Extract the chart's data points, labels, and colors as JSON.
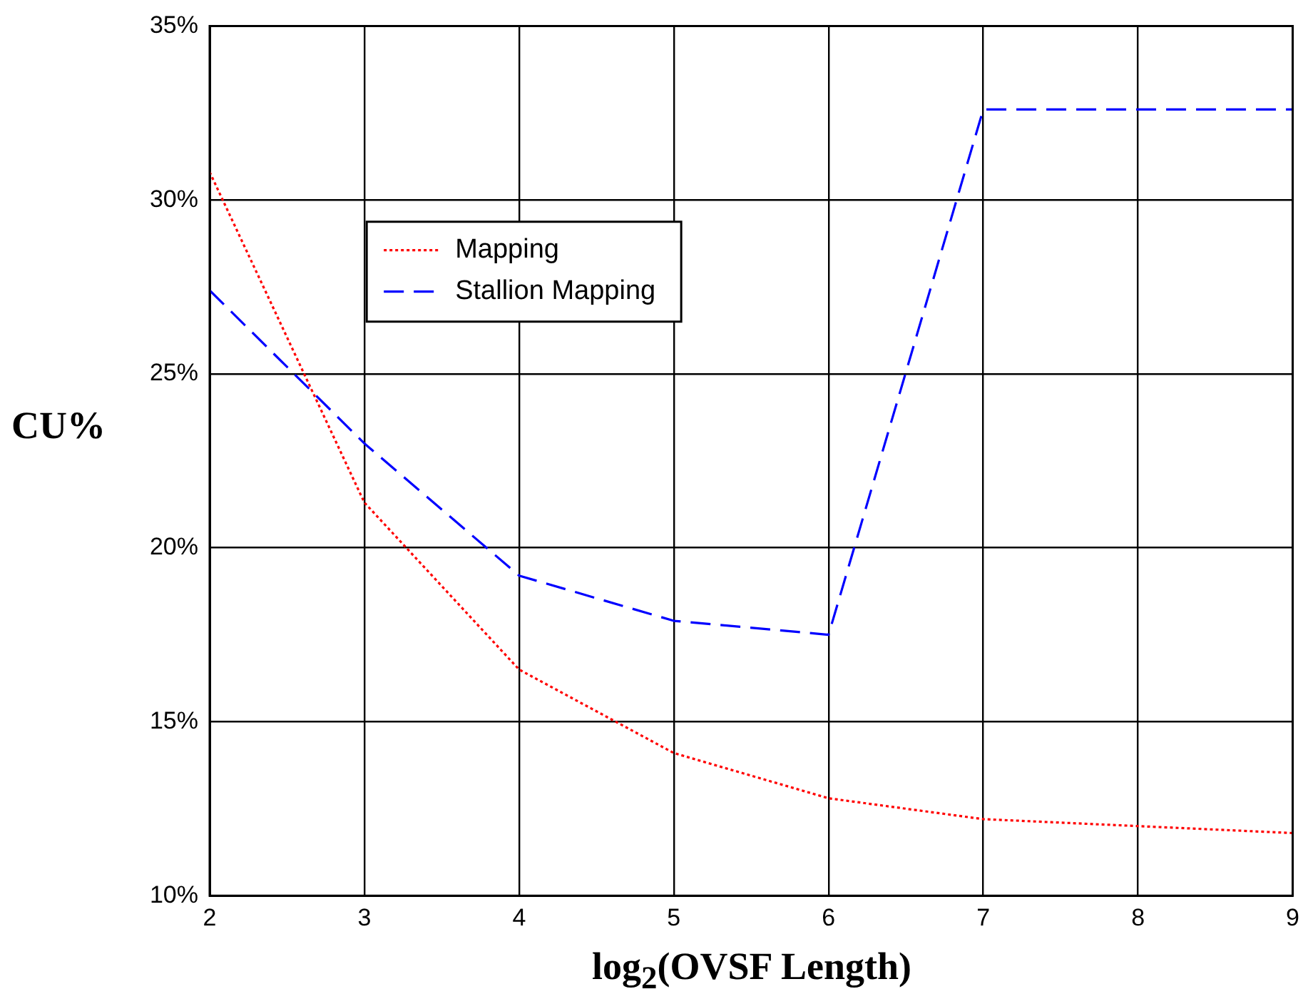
{
  "chart_data": {
    "type": "line",
    "xlabel": "log$_{2}$(OVSF Length)",
    "ylabel": "CU%",
    "x": [
      2,
      3,
      4,
      5,
      6,
      7,
      8,
      9
    ],
    "series": [
      {
        "name": "Mapping",
        "color": "#ff0000",
        "line_style": "dotted",
        "values": [
          30.8,
          21.3,
          16.5,
          14.1,
          12.8,
          12.2,
          12.0,
          11.8
        ]
      },
      {
        "name": "Stallion Mapping",
        "color": "#0000ff",
        "line_style": "dashed",
        "values": [
          27.4,
          23.0,
          19.2,
          17.9,
          17.5,
          32.6,
          32.6,
          32.6
        ]
      }
    ],
    "xlim": [
      2,
      9
    ],
    "xticks": [
      2,
      3,
      4,
      5,
      6,
      7,
      8,
      9
    ],
    "ylim": [
      10,
      35
    ],
    "yticks": [
      {
        "value": 10,
        "label": "10%"
      },
      {
        "value": 15,
        "label": "15%"
      },
      {
        "value": 20,
        "label": "20%"
      },
      {
        "value": 25,
        "label": "25%"
      },
      {
        "value": 30,
        "label": "30%"
      },
      {
        "value": 35,
        "label": "35%"
      }
    ],
    "grid": true,
    "legend": "top left",
    "marker": "none"
  }
}
